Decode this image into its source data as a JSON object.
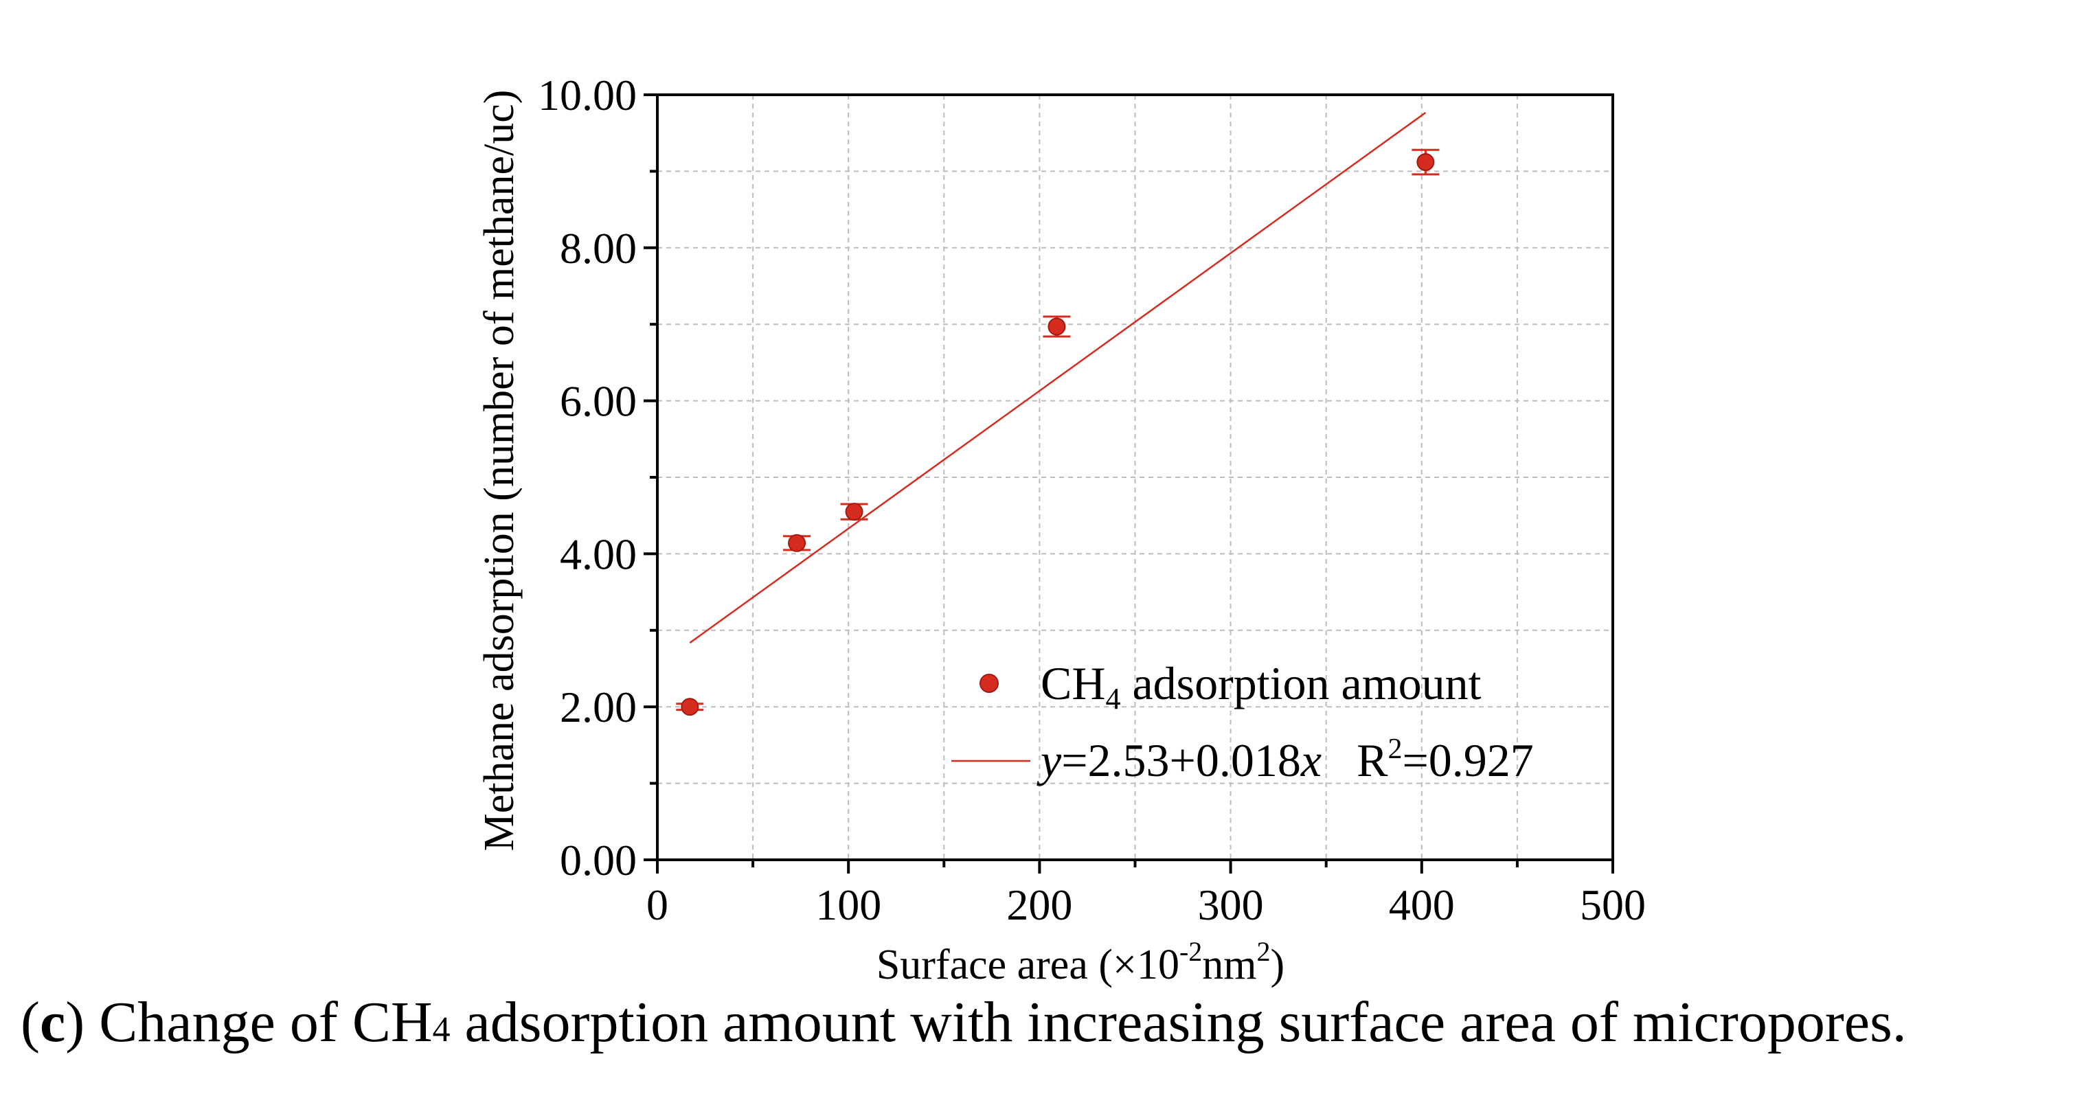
{
  "chart_data": {
    "type": "scatter",
    "title": "",
    "xlabel": "Surface area (×10-2nm2)",
    "ylabel": "Methane adsorption (number of methane/uc)",
    "xlim": [
      0,
      500
    ],
    "ylim": [
      0,
      10
    ],
    "x_ticks": [
      0,
      100,
      200,
      300,
      400,
      500
    ],
    "x_tick_labels": [
      "0",
      "100",
      "200",
      "300",
      "400",
      "500"
    ],
    "y_ticks": [
      0,
      2,
      4,
      6,
      8,
      10
    ],
    "y_tick_labels": [
      "0.00",
      "2.00",
      "4.00",
      "6.00",
      "8.00",
      "10.00"
    ],
    "grid": true,
    "legend_position": "bottom-right",
    "series": [
      {
        "name": "CH4 adsorption amount",
        "kind": "scatter",
        "color": "#d62c20",
        "x": [
          17,
          73,
          103,
          209,
          402
        ],
        "y": [
          2.0,
          4.14,
          4.55,
          6.97,
          9.12
        ],
        "err": [
          0.04,
          0.09,
          0.1,
          0.13,
          0.16
        ]
      },
      {
        "name": "y=2.53+0.018x   R2=0.927",
        "kind": "fit-line",
        "color": "#d62c20",
        "intercept": 2.53,
        "slope": 0.018,
        "r2": 0.927,
        "x_range": [
          17,
          402
        ]
      }
    ],
    "legend": {
      "scatter_main": "CH",
      "scatter_sub": "4",
      "scatter_rest": " adsorption amount",
      "fit_y": "y",
      "fit_mid": "=2.53+0.018",
      "fit_x": "x",
      "fit_r": "   R",
      "fit_r_sup": "2",
      "fit_r_val": "=0.927"
    },
    "xlabel_parts": {
      "pre": "Surface area (×10",
      "sup1": "-2",
      "mid": "nm",
      "sup2": "2",
      "post": ")"
    }
  },
  "caption": {
    "open": "(",
    "letter": "c",
    "close": ") Change of CH",
    "sub": "4",
    "rest": " adsorption amount with increasing surface area of micropores."
  },
  "colors": {
    "marker": "#d62c20",
    "line": "#d62c20",
    "grid": "#bdbdbd",
    "axis": "#000000"
  }
}
